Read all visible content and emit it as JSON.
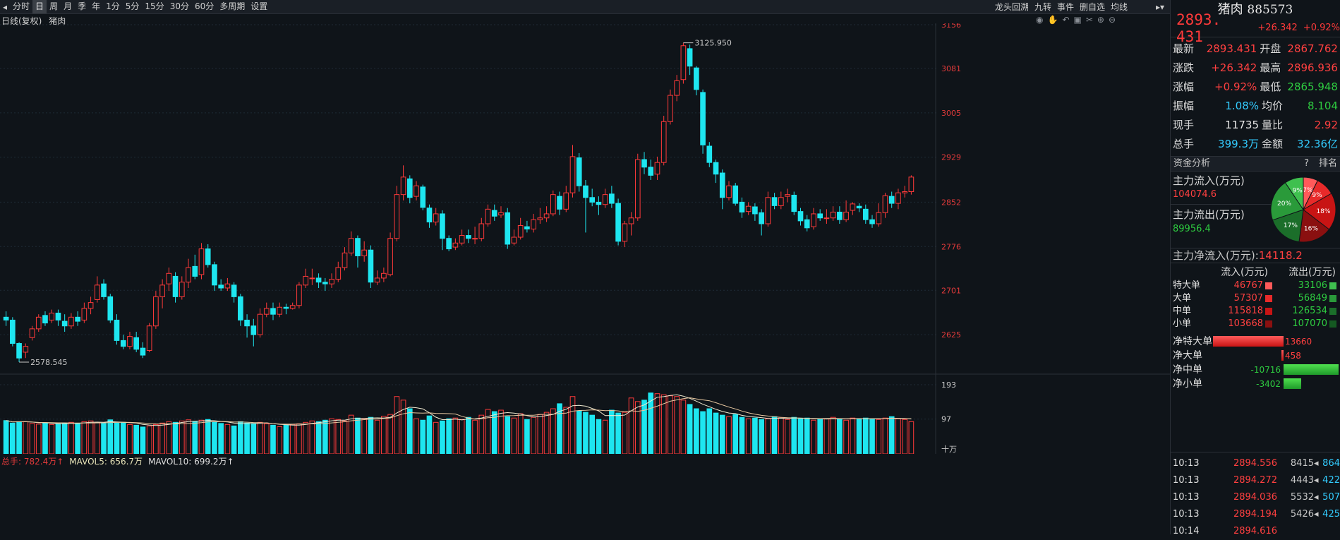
{
  "toolbar": {
    "periods": [
      "分时",
      "日",
      "周",
      "月",
      "季",
      "年",
      "1分",
      "5分",
      "15分",
      "30分",
      "60分",
      "多周期",
      "设置"
    ],
    "active": "日",
    "right_tools": [
      "龙头回溯",
      "九转",
      "事件",
      "删自选",
      "均线"
    ]
  },
  "chart": {
    "subtitle": "日线(复权)",
    "stock_short": "猪肉",
    "price_labels": [
      "3156",
      "3081",
      "3005",
      "2929",
      "2852",
      "2776",
      "2701",
      "2625"
    ],
    "high_label": "3125.950",
    "low_label": "2578.545",
    "vol_legend": {
      "total": "总手: 782.4万↑",
      "mavol5": "MAVOL5: 656.7万",
      "mavol10": "MAVOL10: 699.2万↑"
    },
    "vol_labels": [
      "193",
      "97",
      "十万"
    ]
  },
  "chart_data": {
    "type": "candlestick",
    "ylim": [
      2578,
      3156
    ],
    "candles": [
      [
        2655,
        2650,
        2665,
        2640
      ],
      [
        2650,
        2610,
        2655,
        2605
      ],
      [
        2610,
        2585,
        2612,
        2578
      ],
      [
        2595,
        2605,
        2610,
        2585
      ],
      [
        2620,
        2635,
        2640,
        2615
      ],
      [
        2635,
        2655,
        2660,
        2630
      ],
      [
        2658,
        2645,
        2665,
        2640
      ],
      [
        2650,
        2662,
        2668,
        2645
      ],
      [
        2662,
        2650,
        2668,
        2640
      ],
      [
        2648,
        2640,
        2660,
        2630
      ],
      [
        2640,
        2655,
        2662,
        2635
      ],
      [
        2655,
        2648,
        2665,
        2640
      ],
      [
        2650,
        2670,
        2680,
        2645
      ],
      [
        2670,
        2680,
        2690,
        2660
      ],
      [
        2685,
        2710,
        2725,
        2680
      ],
      [
        2712,
        2690,
        2720,
        2685
      ],
      [
        2690,
        2650,
        2695,
        2645
      ],
      [
        2650,
        2615,
        2660,
        2608
      ],
      [
        2615,
        2605,
        2625,
        2600
      ],
      [
        2605,
        2622,
        2630,
        2600
      ],
      [
        2620,
        2600,
        2630,
        2595
      ],
      [
        2602,
        2590,
        2612,
        2585
      ],
      [
        2598,
        2640,
        2645,
        2595
      ],
      [
        2640,
        2690,
        2700,
        2635
      ],
      [
        2690,
        2710,
        2720,
        2670
      ],
      [
        2712,
        2730,
        2740,
        2700
      ],
      [
        2725,
        2690,
        2732,
        2680
      ],
      [
        2690,
        2715,
        2725,
        2685
      ],
      [
        2715,
        2740,
        2755,
        2705
      ],
      [
        2742,
        2725,
        2762,
        2720
      ],
      [
        2728,
        2772,
        2782,
        2720
      ],
      [
        2772,
        2745,
        2780,
        2740
      ],
      [
        2745,
        2710,
        2750,
        2700
      ],
      [
        2710,
        2705,
        2720,
        2700
      ],
      [
        2705,
        2712,
        2722,
        2700
      ],
      [
        2710,
        2690,
        2715,
        2680
      ],
      [
        2690,
        2650,
        2695,
        2640
      ],
      [
        2650,
        2640,
        2660,
        2620
      ],
      [
        2640,
        2625,
        2652,
        2605
      ],
      [
        2625,
        2660,
        2670,
        2620
      ],
      [
        2660,
        2670,
        2680,
        2655
      ],
      [
        2670,
        2660,
        2680,
        2650
      ],
      [
        2660,
        2672,
        2680,
        2655
      ],
      [
        2672,
        2670,
        2678,
        2660
      ],
      [
        2670,
        2675,
        2680,
        2668
      ],
      [
        2675,
        2710,
        2715,
        2670
      ],
      [
        2710,
        2725,
        2738,
        2705
      ],
      [
        2722,
        2722,
        2738,
        2710
      ],
      [
        2722,
        2715,
        2730,
        2705
      ],
      [
        2715,
        2712,
        2722,
        2700
      ],
      [
        2712,
        2720,
        2730,
        2705
      ],
      [
        2720,
        2740,
        2750,
        2715
      ],
      [
        2740,
        2765,
        2775,
        2735
      ],
      [
        2765,
        2790,
        2802,
        2760
      ],
      [
        2790,
        2760,
        2795,
        2740
      ],
      [
        2760,
        2770,
        2785,
        2750
      ],
      [
        2770,
        2715,
        2778,
        2705
      ],
      [
        2715,
        2722,
        2735,
        2710
      ],
      [
        2722,
        2730,
        2740,
        2715
      ],
      [
        2728,
        2790,
        2800,
        2725
      ],
      [
        2790,
        2865,
        2880,
        2785
      ],
      [
        2865,
        2895,
        2915,
        2855
      ],
      [
        2892,
        2860,
        2898,
        2850
      ],
      [
        2862,
        2880,
        2888,
        2855
      ],
      [
        2878,
        2843,
        2882,
        2838
      ],
      [
        2842,
        2818,
        2848,
        2808
      ],
      [
        2818,
        2832,
        2842,
        2812
      ],
      [
        2832,
        2790,
        2838,
        2770
      ],
      [
        2790,
        2772,
        2795,
        2768
      ],
      [
        2775,
        2782,
        2790,
        2770
      ],
      [
        2782,
        2795,
        2805,
        2778
      ],
      [
        2795,
        2790,
        2805,
        2782
      ],
      [
        2790,
        2790,
        2810,
        2780
      ],
      [
        2790,
        2815,
        2825,
        2785
      ],
      [
        2815,
        2840,
        2848,
        2810
      ],
      [
        2838,
        2828,
        2848,
        2820
      ],
      [
        2830,
        2834,
        2845,
        2825
      ],
      [
        2834,
        2780,
        2842,
        2772
      ],
      [
        2782,
        2792,
        2805,
        2778
      ],
      [
        2792,
        2812,
        2825,
        2788
      ],
      [
        2810,
        2806,
        2820,
        2800
      ],
      [
        2806,
        2822,
        2832,
        2800
      ],
      [
        2822,
        2825,
        2842,
        2815
      ],
      [
        2825,
        2832,
        2845,
        2818
      ],
      [
        2832,
        2865,
        2872,
        2828
      ],
      [
        2862,
        2840,
        2870,
        2830
      ],
      [
        2840,
        2868,
        2880,
        2835
      ],
      [
        2868,
        2930,
        2950,
        2860
      ],
      [
        2928,
        2880,
        2936,
        2870
      ],
      [
        2880,
        2860,
        2890,
        2800
      ],
      [
        2860,
        2852,
        2875,
        2845
      ],
      [
        2852,
        2848,
        2862,
        2830
      ],
      [
        2848,
        2865,
        2875,
        2842
      ],
      [
        2866,
        2850,
        2880,
        2842
      ],
      [
        2850,
        2785,
        2858,
        2778
      ],
      [
        2785,
        2815,
        2820,
        2775
      ],
      [
        2815,
        2825,
        2835,
        2795
      ],
      [
        2825,
        2925,
        2935,
        2820
      ],
      [
        2925,
        2912,
        2938,
        2900
      ],
      [
        2912,
        2898,
        2925,
        2890
      ],
      [
        2900,
        2920,
        2930,
        2890
      ],
      [
        2920,
        2990,
        3000,
        2915
      ],
      [
        2990,
        3035,
        3045,
        2985
      ],
      [
        3035,
        3060,
        3070,
        3025
      ],
      [
        3062,
        3120,
        3125,
        3055
      ],
      [
        3115,
        3085,
        3122,
        3070
      ],
      [
        3082,
        3045,
        3085,
        3035
      ],
      [
        3040,
        2950,
        3045,
        2935
      ],
      [
        2948,
        2920,
        2955,
        2912
      ],
      [
        2920,
        2900,
        2925,
        2885
      ],
      [
        2902,
        2860,
        2908,
        2840
      ],
      [
        2860,
        2880,
        2888,
        2855
      ],
      [
        2880,
        2850,
        2885,
        2846
      ],
      [
        2852,
        2835,
        2860,
        2825
      ],
      [
        2836,
        2845,
        2852,
        2830
      ],
      [
        2844,
        2832,
        2850,
        2820
      ],
      [
        2834,
        2815,
        2840,
        2795
      ],
      [
        2815,
        2860,
        2870,
        2810
      ],
      [
        2860,
        2846,
        2868,
        2840
      ],
      [
        2846,
        2860,
        2870,
        2840
      ],
      [
        2862,
        2865,
        2875,
        2852
      ],
      [
        2864,
        2836,
        2870,
        2830
      ],
      [
        2836,
        2820,
        2842,
        2812
      ],
      [
        2822,
        2808,
        2830,
        2802
      ],
      [
        2810,
        2832,
        2842,
        2805
      ],
      [
        2832,
        2825,
        2840,
        2820
      ],
      [
        2825,
        2825,
        2840,
        2815
      ],
      [
        2825,
        2835,
        2845,
        2820
      ],
      [
        2835,
        2822,
        2845,
        2815
      ],
      [
        2822,
        2835,
        2855,
        2818
      ],
      [
        2838,
        2849,
        2852,
        2830
      ],
      [
        2845,
        2842,
        2850,
        2835
      ],
      [
        2840,
        2822,
        2848,
        2815
      ],
      [
        2822,
        2815,
        2830,
        2808
      ],
      [
        2815,
        2834,
        2850,
        2810
      ],
      [
        2834,
        2863,
        2868,
        2825
      ],
      [
        2862,
        2850,
        2870,
        2842
      ],
      [
        2850,
        2868,
        2875,
        2840
      ],
      [
        2868,
        2870,
        2880,
        2860
      ],
      [
        2870,
        2895,
        2898,
        2865
      ]
    ],
    "volume": [
      93,
      86,
      90,
      90,
      85,
      83,
      87,
      82,
      84,
      86,
      88,
      85,
      90,
      92,
      88,
      85,
      95,
      86,
      88,
      82,
      80,
      75,
      78,
      82,
      86,
      90,
      88,
      92,
      95,
      90,
      94,
      96,
      88,
      85,
      82,
      78,
      90,
      86,
      85,
      88,
      84,
      80,
      76,
      80,
      82,
      84,
      88,
      92,
      90,
      94,
      98,
      96,
      92,
      108,
      100,
      98,
      102,
      94,
      105,
      110,
      160,
      150,
      126,
      98,
      94,
      106,
      88,
      92,
      98,
      100,
      96,
      102,
      94,
      108,
      124,
      118,
      122,
      104,
      100,
      112,
      96,
      102,
      110,
      116,
      126,
      140,
      130,
      160,
      120,
      116,
      108,
      96,
      94,
      122,
      114,
      116,
      156,
      146,
      150,
      170,
      168,
      165,
      162,
      160,
      150,
      138,
      126,
      118,
      126,
      114,
      108,
      104,
      110,
      102,
      98,
      100,
      96,
      98,
      104,
      100,
      96,
      102,
      98,
      100,
      94,
      96,
      98,
      102,
      98,
      94,
      100,
      98,
      100,
      98,
      96,
      100,
      104,
      98,
      96,
      90
    ]
  },
  "quote": {
    "name": "猪肉",
    "code": "885573",
    "last": "2893. 431",
    "change": "+26.342",
    "pct": "+0.92%",
    "rows": [
      {
        "l1": "最新",
        "v1": "2893.431",
        "c1": "red",
        "l2": "开盘",
        "v2": "2867.762",
        "c2": "red"
      },
      {
        "l1": "涨跌",
        "v1": "+26.342",
        "c1": "red",
        "l2": "最高",
        "v2": "2896.936",
        "c2": "red"
      },
      {
        "l1": "涨幅",
        "v1": "+0.92%",
        "c1": "red",
        "l2": "最低",
        "v2": "2865.948",
        "c2": "green"
      },
      {
        "l1": "振幅",
        "v1": "1.08%",
        "c1": "cyan",
        "l2": "均价",
        "v2": "8.104",
        "c2": "green"
      },
      {
        "l1": "现手",
        "v1": "11735",
        "c1": "white",
        "l2": "量比",
        "v2": "2.92",
        "c2": "red"
      },
      {
        "l1": "总手",
        "v1": "399.3万",
        "c1": "cyan",
        "l2": "金额",
        "v2": "32.36亿",
        "c2": "cyan"
      }
    ]
  },
  "fund": {
    "title": "资金分析",
    "help": "?",
    "rank": "排名",
    "inflow_label": "主力流入(万元)",
    "inflow_val": "104074.6",
    "outflow_label": "主力流出(万元)",
    "outflow_val": "89956.4",
    "net_label": "主力净流入(万元):",
    "net_val": "14118.2",
    "pie": [
      {
        "label": "7%",
        "value": 7,
        "color": "#ff5a5a"
      },
      {
        "label": "9%",
        "value": 9,
        "color": "#e82a2a"
      },
      {
        "label": "18%",
        "value": 18,
        "color": "#c81414"
      },
      {
        "label": "16%",
        "value": 16,
        "color": "#8a1010"
      },
      {
        "label": "17%",
        "value": 17,
        "color": "#1b6e2a"
      },
      {
        "label": "20%",
        "value": 20,
        "color": "#2a9a3a"
      },
      {
        "label": "9%",
        "value": 9,
        "color": "#3fc04f"
      }
    ],
    "order_hdr": {
      "in": "流入(万元)",
      "out": "流出(万元)"
    },
    "orders": [
      {
        "k": "特大单",
        "in": "46767",
        "out": "33106",
        "ci": "#ff5a5a",
        "co": "#3fc04f"
      },
      {
        "k": "大单",
        "in": "57307",
        "out": "56849",
        "ci": "#e82a2a",
        "co": "#2a9a3a"
      },
      {
        "k": "中单",
        "in": "115818",
        "out": "126534",
        "ci": "#c81414",
        "co": "#1b6e2a"
      },
      {
        "k": "小单",
        "in": "103668",
        "out": "107070",
        "ci": "#8a1010",
        "co": "#155a22"
      }
    ],
    "net": [
      {
        "k": "净特大单",
        "v": "13660",
        "n": 13660
      },
      {
        "k": "净大单",
        "v": "458",
        "n": 458
      },
      {
        "k": "净中单",
        "v": "-10716",
        "n": -10716
      },
      {
        "k": "净小单",
        "v": "-3402",
        "n": -3402
      }
    ]
  },
  "ticks": [
    {
      "t": "10:13",
      "p": "2894.556",
      "q": "8415",
      "q2": "864"
    },
    {
      "t": "10:13",
      "p": "2894.272",
      "q": "4443",
      "q2": "422"
    },
    {
      "t": "10:13",
      "p": "2894.036",
      "q": "5532",
      "q2": "507"
    },
    {
      "t": "10:13",
      "p": "2894.194",
      "q": "5426",
      "q2": "425"
    },
    {
      "t": "10:14",
      "p": "2894.616",
      "q": "",
      "q2": ""
    }
  ]
}
